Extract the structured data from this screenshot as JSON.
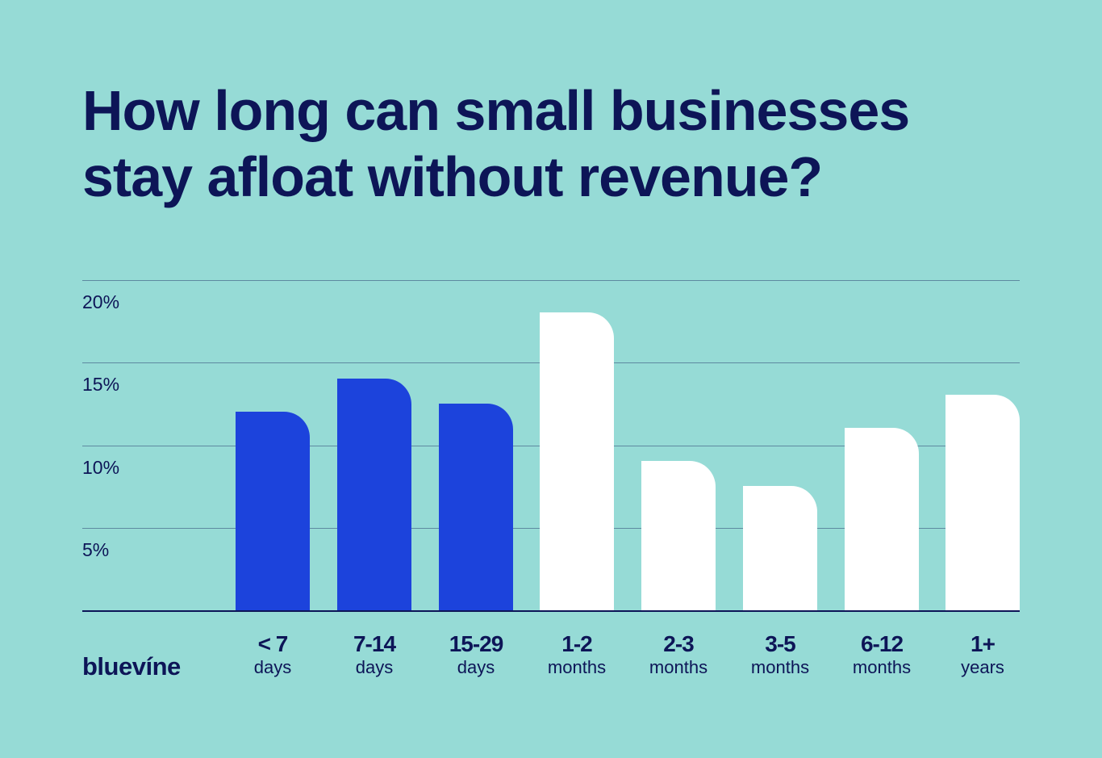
{
  "title": {
    "line1": "How long can small businesses",
    "line2": "stay afloat without revenue?"
  },
  "brand": {
    "logo_text": "bluevíne"
  },
  "colors": {
    "background": "#96dbd6",
    "text": "#0d1557",
    "highlight_bar": "#1c43dc",
    "default_bar": "#ffffff",
    "gridline": "#5e8aa0"
  },
  "y_axis": {
    "ticks": [
      "20%",
      "15%",
      "10%",
      "5%"
    ]
  },
  "x_axis": {
    "labels": [
      {
        "top": "< 7",
        "bottom": "days"
      },
      {
        "top": "7-14",
        "bottom": "days"
      },
      {
        "top": "15-29",
        "bottom": "days"
      },
      {
        "top": "1-2",
        "bottom": "months"
      },
      {
        "top": "2-3",
        "bottom": "months"
      },
      {
        "top": "3-5",
        "bottom": "months"
      },
      {
        "top": "6-12",
        "bottom": "months"
      },
      {
        "top": "1+",
        "bottom": "years"
      }
    ]
  },
  "chart_data": {
    "type": "bar",
    "title": "How long can small businesses stay afloat without revenue?",
    "categories": [
      "< 7 days",
      "7-14 days",
      "15-29 days",
      "1-2 months",
      "2-3 months",
      "3-5 months",
      "6-12 months",
      "1+ years"
    ],
    "values": [
      12,
      14,
      12.5,
      18,
      9,
      7.5,
      11,
      13
    ],
    "bar_colors": [
      "#1c43dc",
      "#1c43dc",
      "#1c43dc",
      "#ffffff",
      "#ffffff",
      "#ffffff",
      "#ffffff",
      "#ffffff"
    ],
    "xlabel": "",
    "ylabel": "",
    "yticks": [
      "5%",
      "10%",
      "15%",
      "20%"
    ],
    "ylim": [
      0,
      20
    ],
    "grid": true,
    "legend": null,
    "unit": "%"
  }
}
